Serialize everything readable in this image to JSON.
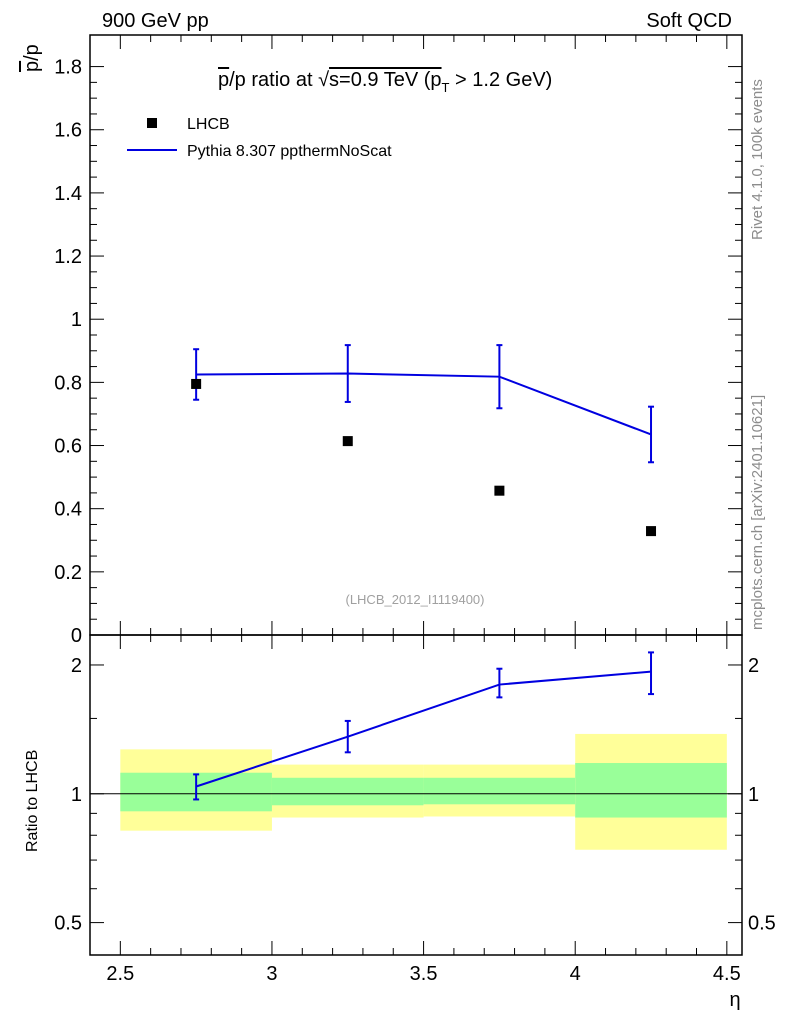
{
  "header": {
    "left": "900 GeV pp",
    "right": "Soft QCD"
  },
  "side_labels": {
    "rivet": "Rivet 4.1.0,  100k events",
    "mcplots": "mcplots.cern.ch [arXiv:2401.10621]"
  },
  "chart_data": [
    {
      "panel": "main",
      "type": "scatter+line",
      "title_parts": {
        "pbar": "p",
        "slash": "/p ratio at ",
        "sqrt": "√",
        "s": "s=0.9 TeV (p",
        "sub": "T",
        "rest": " > 1.2 GeV)"
      },
      "ylabel": {
        "pbar": "p",
        "rest": "/p"
      },
      "xlabel": "η",
      "xlim": [
        2.4,
        4.55
      ],
      "ylim": [
        0,
        1.9
      ],
      "reference_label": "(LHCB_2012_I1119400)",
      "x_ticks": [
        "2.5",
        "3",
        "3.5",
        "4",
        "4.5"
      ],
      "y_ticks": [
        "0",
        "0.2",
        "0.4",
        "0.6",
        "0.8",
        "1",
        "1.2",
        "1.4",
        "1.6",
        "1.8"
      ],
      "series": [
        {
          "name": "LHCB",
          "style": "markers",
          "color": "#000000",
          "x": [
            2.75,
            3.25,
            3.75,
            4.25
          ],
          "y": [
            0.795,
            0.614,
            0.457,
            0.329
          ]
        },
        {
          "name": "Pythia 8.307 ppthermNoScat",
          "style": "line",
          "color": "#0000e0",
          "x": [
            2.75,
            3.25,
            3.75,
            4.25
          ],
          "y": [
            0.825,
            0.828,
            0.818,
            0.635
          ],
          "err": [
            0.08,
            0.09,
            0.1,
            0.088
          ]
        }
      ]
    },
    {
      "panel": "ratio",
      "type": "line+bands",
      "ylabel": "Ratio to LHCB",
      "yscale": "log",
      "ylim": [
        0.42,
        2.35
      ],
      "y_ticks": [
        "0.5",
        "1",
        "2"
      ],
      "bins": [
        [
          2.5,
          3.0
        ],
        [
          3.0,
          3.5
        ],
        [
          3.5,
          4.0
        ],
        [
          4.0,
          4.5
        ]
      ],
      "band_inner": [
        [
          0.91,
          1.12
        ],
        [
          0.94,
          1.09
        ],
        [
          0.945,
          1.09
        ],
        [
          0.88,
          1.18
        ]
      ],
      "band_outer": [
        [
          0.82,
          1.27
        ],
        [
          0.88,
          1.17
        ],
        [
          0.885,
          1.17
        ],
        [
          0.74,
          1.38
        ]
      ],
      "series": [
        {
          "name": "Pythia 8.307 ppthermNoScat",
          "color": "#0000e0",
          "x": [
            2.75,
            3.25,
            3.75,
            4.25
          ],
          "y": [
            1.04,
            1.36,
            1.8,
            1.93
          ],
          "err_lo": [
            0.07,
            0.11,
            0.12,
            0.22
          ],
          "err_hi": [
            0.07,
            0.12,
            0.16,
            0.21
          ]
        }
      ]
    }
  ],
  "colors": {
    "inner_band": "#99ff99",
    "outer_band": "#ffff99",
    "mc": "#0000e0",
    "data": "#000000"
  }
}
